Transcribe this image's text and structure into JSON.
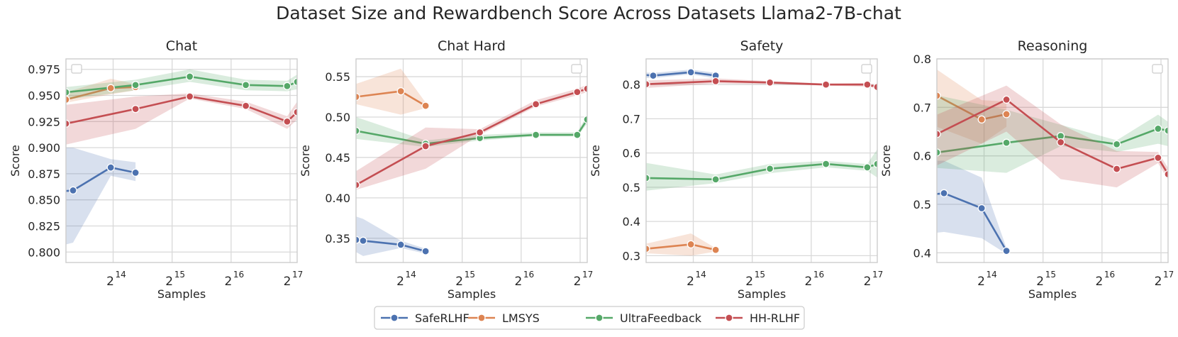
{
  "figure_title": "Dataset Size and Rewardbench Score Across Datasets Llama2-7B-chat",
  "colors": {
    "SafeRLHF": "#4c72b0",
    "LMSYS": "#dd8452",
    "UltraFeedback": "#55a868",
    "HH-RLHF": "#c44e52",
    "grid": "#d9d9d9",
    "axes_edge": "#cccccc"
  },
  "legend": [
    "SafeRLHF",
    "LMSYS",
    "UltraFeedback",
    "HH-RLHF"
  ],
  "chart_data": [
    {
      "type": "line",
      "title": "Chat",
      "xlabel": "Samples",
      "ylabel": "Score",
      "xscale": "log2",
      "xlim_log2": [
        13.2,
        17.12
      ],
      "xticks": [
        14,
        15,
        16,
        17
      ],
      "xtick_labels": [
        "2",
        "2",
        "2",
        "2"
      ],
      "xtick_exponents": [
        "14",
        "15",
        "16",
        "17"
      ],
      "ylim": [
        0.79,
        0.985
      ],
      "yticks": [
        0.8,
        0.825,
        0.85,
        0.875,
        0.9,
        0.925,
        0.95,
        0.975
      ],
      "ytick_labels": [
        "0.800",
        "0.825",
        "0.850",
        "0.875",
        "0.900",
        "0.925",
        "0.950",
        "0.975"
      ],
      "series": [
        {
          "name": "SafeRLHF",
          "x_log2": [
            13.1,
            13.32,
            13.96,
            14.38
          ],
          "y": [
            0.858,
            0.859,
            0.881,
            0.876
          ],
          "lo": [
            0.806,
            0.809,
            0.873,
            0.868
          ],
          "hi": [
            0.9,
            0.9,
            0.889,
            0.886
          ]
        },
        {
          "name": "LMSYS",
          "x_log2": [
            13.2,
            13.96,
            14.38
          ],
          "y": [
            0.946,
            0.957,
            0.958
          ],
          "lo": [
            0.943,
            0.951,
            0.955
          ],
          "hi": [
            0.953,
            0.966,
            0.961
          ]
        },
        {
          "name": "UltraFeedback",
          "x_log2": [
            13.2,
            14.38,
            15.3,
            16.25,
            16.95,
            17.12
          ],
          "y": [
            0.953,
            0.96,
            0.968,
            0.96,
            0.959,
            0.963
          ],
          "lo": [
            0.946,
            0.955,
            0.963,
            0.955,
            0.954,
            0.956
          ],
          "hi": [
            0.958,
            0.965,
            0.975,
            0.965,
            0.964,
            0.97
          ]
        },
        {
          "name": "HH-RLHF",
          "x_log2": [
            13.2,
            14.38,
            15.3,
            16.25,
            16.95,
            17.12
          ],
          "y": [
            0.923,
            0.937,
            0.949,
            0.94,
            0.925,
            0.934
          ],
          "lo": [
            0.903,
            0.918,
            0.947,
            0.937,
            0.918,
            0.927
          ],
          "hi": [
            0.941,
            0.949,
            0.952,
            0.944,
            0.93,
            0.944
          ]
        }
      ]
    },
    {
      "type": "line",
      "title": "Chat Hard",
      "xlabel": "Samples",
      "ylabel": "Score",
      "xscale": "log2",
      "xlim_log2": [
        13.2,
        17.12
      ],
      "xticks": [
        14,
        15,
        16,
        17
      ],
      "xtick_labels": [
        "2",
        "2",
        "2",
        "2"
      ],
      "xtick_exponents": [
        "14",
        "15",
        "16",
        "17"
      ],
      "ylim": [
        0.32,
        0.572
      ],
      "yticks": [
        0.35,
        0.4,
        0.45,
        0.5,
        0.55
      ],
      "ytick_labels": [
        "0.35",
        "0.40",
        "0.45",
        "0.50",
        "0.55"
      ],
      "series": [
        {
          "name": "SafeRLHF",
          "x_log2": [
            13.2,
            13.32,
            13.96,
            14.38
          ],
          "y": [
            0.348,
            0.347,
            0.342,
            0.334
          ],
          "lo": [
            0.333,
            0.328,
            0.338,
            0.331
          ],
          "hi": [
            0.377,
            0.374,
            0.347,
            0.337
          ]
        },
        {
          "name": "LMSYS",
          "x_log2": [
            13.2,
            13.96,
            14.38
          ],
          "y": [
            0.525,
            0.532,
            0.514
          ],
          "lo": [
            0.516,
            0.503,
            0.511
          ],
          "hi": [
            0.541,
            0.56,
            0.518
          ]
        },
        {
          "name": "UltraFeedback",
          "x_log2": [
            13.2,
            14.38,
            15.3,
            16.25,
            16.95,
            17.12
          ],
          "y": [
            0.483,
            0.467,
            0.474,
            0.478,
            0.478,
            0.497
          ],
          "lo": [
            0.473,
            0.463,
            0.471,
            0.476,
            0.476,
            0.492
          ],
          "hi": [
            0.5,
            0.471,
            0.478,
            0.481,
            0.481,
            0.503
          ]
        },
        {
          "name": "HH-RLHF",
          "x_log2": [
            13.2,
            14.38,
            15.3,
            16.25,
            16.95,
            17.12
          ],
          "y": [
            0.416,
            0.464,
            0.481,
            0.516,
            0.531,
            0.535
          ],
          "lo": [
            0.41,
            0.436,
            0.478,
            0.513,
            0.527,
            0.531
          ],
          "hi": [
            0.433,
            0.487,
            0.485,
            0.521,
            0.535,
            0.54
          ]
        }
      ]
    },
    {
      "type": "line",
      "title": "Safety",
      "xlabel": "Samples",
      "ylabel": "Score",
      "xscale": "log2",
      "xlim_log2": [
        13.2,
        17.12
      ],
      "xticks": [
        14,
        15,
        16,
        17
      ],
      "xtick_labels": [
        "2",
        "2",
        "2",
        "2"
      ],
      "xtick_exponents": [
        "14",
        "15",
        "16",
        "17"
      ],
      "ylim": [
        0.28,
        0.875
      ],
      "yticks": [
        0.3,
        0.4,
        0.5,
        0.6,
        0.7,
        0.8
      ],
      "ytick_labels": [
        "0.3",
        "0.4",
        "0.5",
        "0.6",
        "0.7",
        "0.8"
      ],
      "series": [
        {
          "name": "SafeRLHF",
          "x_log2": [
            13.1,
            13.32,
            13.96,
            14.38
          ],
          "y": [
            0.829,
            0.826,
            0.836,
            0.826
          ],
          "lo": [
            0.82,
            0.819,
            0.83,
            0.818
          ],
          "hi": [
            0.836,
            0.834,
            0.844,
            0.834
          ]
        },
        {
          "name": "LMSYS",
          "x_log2": [
            13.2,
            13.96,
            14.38
          ],
          "y": [
            0.32,
            0.333,
            0.317
          ],
          "lo": [
            0.307,
            0.3,
            0.312
          ],
          "hi": [
            0.335,
            0.365,
            0.322
          ]
        },
        {
          "name": "UltraFeedback",
          "x_log2": [
            13.2,
            14.38,
            15.3,
            16.25,
            16.95,
            17.12
          ],
          "y": [
            0.527,
            0.523,
            0.554,
            0.568,
            0.558,
            0.568
          ],
          "lo": [
            0.49,
            0.512,
            0.541,
            0.558,
            0.548,
            0.528
          ],
          "hi": [
            0.571,
            0.537,
            0.568,
            0.577,
            0.568,
            0.611
          ]
        },
        {
          "name": "HH-RLHF",
          "x_log2": [
            13.2,
            14.38,
            15.3,
            16.25,
            16.95,
            17.12
          ],
          "y": [
            0.801,
            0.81,
            0.806,
            0.8,
            0.8,
            0.793
          ],
          "lo": [
            0.79,
            0.803,
            0.801,
            0.797,
            0.794,
            0.789
          ],
          "hi": [
            0.812,
            0.818,
            0.81,
            0.803,
            0.805,
            0.798
          ]
        }
      ]
    },
    {
      "type": "line",
      "title": "Reasoning",
      "xlabel": "Samples",
      "ylabel": "Score",
      "xscale": "log2",
      "xlim_log2": [
        13.2,
        17.12
      ],
      "xticks": [
        14,
        15,
        16,
        17
      ],
      "xtick_labels": [
        "2",
        "2",
        "2",
        "2"
      ],
      "xtick_exponents": [
        "14",
        "15",
        "16",
        "17"
      ],
      "ylim": [
        0.38,
        0.8
      ],
      "yticks": [
        0.4,
        0.5,
        0.6,
        0.7,
        0.8
      ],
      "ytick_labels": [
        "0.4",
        "0.5",
        "0.6",
        "0.7",
        "0.8"
      ],
      "series": [
        {
          "name": "SafeRLHF",
          "x_log2": [
            13.1,
            13.32,
            13.96,
            14.38
          ],
          "y": [
            0.52,
            0.523,
            0.492,
            0.404
          ],
          "lo": [
            0.44,
            0.443,
            0.43,
            0.398
          ],
          "hi": [
            0.59,
            0.59,
            0.555,
            0.41
          ]
        },
        {
          "name": "LMSYS",
          "x_log2": [
            13.2,
            13.96,
            14.38
          ],
          "y": [
            0.724,
            0.675,
            0.686
          ],
          "lo": [
            0.66,
            0.625,
            0.66
          ],
          "hi": [
            0.778,
            0.715,
            0.712
          ]
        },
        {
          "name": "UltraFeedback",
          "x_log2": [
            13.2,
            14.38,
            15.3,
            16.25,
            16.95,
            17.12
          ],
          "y": [
            0.607,
            0.627,
            0.641,
            0.624,
            0.656,
            0.652
          ],
          "lo": [
            0.575,
            0.565,
            0.62,
            0.608,
            0.625,
            0.62
          ],
          "hi": [
            0.725,
            0.695,
            0.664,
            0.632,
            0.685,
            0.67
          ]
        },
        {
          "name": "HH-RLHF",
          "x_log2": [
            13.2,
            14.38,
            15.3,
            16.25,
            16.95,
            17.12
          ],
          "y": [
            0.645,
            0.716,
            0.628,
            0.573,
            0.596,
            0.562
          ],
          "lo": [
            0.58,
            0.65,
            0.552,
            0.535,
            0.585,
            0.55
          ],
          "hi": [
            0.685,
            0.745,
            0.665,
            0.61,
            0.608,
            0.575
          ]
        }
      ]
    }
  ]
}
